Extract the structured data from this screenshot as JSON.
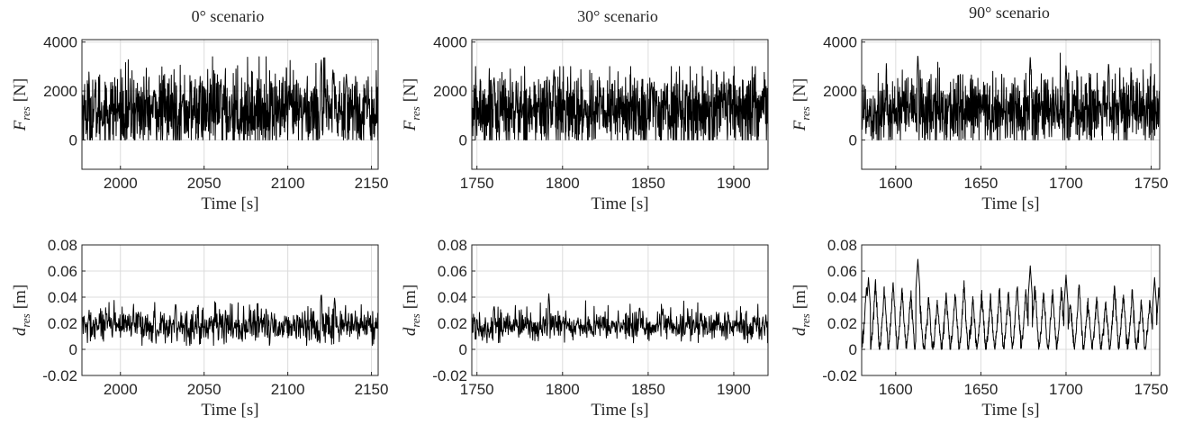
{
  "chart_data": [
    {
      "type": "line",
      "title": "0° scenario",
      "xlabel": "Time [s]",
      "ylabel_symbol": "F",
      "ylabel_sub": "res",
      "ylabel_unit": "[N]",
      "xlim": [
        1977,
        2154
      ],
      "ylim": [
        -1200,
        4100
      ],
      "xticks": [
        2000,
        2050,
        2100,
        2150
      ],
      "xticklabels": [
        "2000",
        "2050",
        "2100",
        "2150"
      ],
      "yticks": [
        0,
        2000,
        4000
      ],
      "yticklabels": [
        "0",
        "2000",
        "4000"
      ],
      "grid": true,
      "series": [
        {
          "x_start": 1977,
          "x_end": 2154,
          "pattern": "dense-noise",
          "points": 1100,
          "mean": 1200,
          "amplitude": 800,
          "min": 0,
          "max": 3400,
          "peaks": [
            [
              2060,
              2500
            ],
            [
              2120,
              3350
            ],
            [
              2127,
              2900
            ],
            [
              2135,
              2700
            ]
          ]
        }
      ]
    },
    {
      "type": "line",
      "title": "30° scenario",
      "xlabel": "Time [s]",
      "ylabel_symbol": "F",
      "ylabel_sub": "res",
      "ylabel_unit": "[N]",
      "xlim": [
        1747,
        1920
      ],
      "ylim": [
        -1200,
        4100
      ],
      "xticks": [
        1750,
        1800,
        1850,
        1900
      ],
      "xticklabels": [
        "1750",
        "1800",
        "1850",
        "1900"
      ],
      "yticks": [
        0,
        2000,
        4000
      ],
      "yticklabels": [
        "0",
        "2000",
        "4000"
      ],
      "grid": true,
      "series": [
        {
          "x_start": 1747,
          "x_end": 1920,
          "pattern": "dense-noise",
          "points": 1100,
          "mean": 1200,
          "amplitude": 800,
          "min": 0,
          "max": 3000,
          "peaks": [
            [
              1795,
              2900
            ],
            [
              1760,
              2600
            ],
            [
              1852,
              2400
            ]
          ]
        }
      ]
    },
    {
      "type": "line",
      "title": "90° scenario",
      "xlabel": "Time [s]",
      "ylabel_symbol": "F",
      "ylabel_sub": "res",
      "ylabel_unit": "[N]",
      "xlim": [
        1580,
        1755
      ],
      "ylim": [
        -1200,
        4100
      ],
      "xticks": [
        1600,
        1650,
        1700,
        1750
      ],
      "xticklabels": [
        "1600",
        "1650",
        "1700",
        "1750"
      ],
      "yticks": [
        0,
        2000,
        4000
      ],
      "yticklabels": [
        "0",
        "2000",
        "4000"
      ],
      "grid": true,
      "series": [
        {
          "x_start": 1580,
          "x_end": 1755,
          "pattern": "dense-noise",
          "points": 1100,
          "mean": 1200,
          "amplitude": 750,
          "min": 0,
          "max": 3550,
          "peaks": [
            [
              1613,
              3550
            ],
            [
              1679,
              3450
            ],
            [
              1700,
              3100
            ],
            [
              1725,
              3200
            ]
          ]
        }
      ]
    },
    {
      "type": "line",
      "title": "",
      "xlabel": "Time [s]",
      "ylabel_symbol": "d",
      "ylabel_sub": "res",
      "ylabel_unit": "[m]",
      "xlim": [
        1977,
        2154
      ],
      "ylim": [
        -0.02,
        0.08
      ],
      "xticks": [
        2000,
        2050,
        2100,
        2150
      ],
      "xticklabels": [
        "2000",
        "2050",
        "2100",
        "2150"
      ],
      "yticks": [
        -0.02,
        0,
        0.02,
        0.04,
        0.06,
        0.08
      ],
      "yticklabels": [
        "-0.02",
        "0",
        "0.02",
        "0.04",
        "0.06",
        "0.08"
      ],
      "grid": true,
      "series": [
        {
          "x_start": 1977,
          "x_end": 2154,
          "pattern": "noise",
          "points": 700,
          "mean": 0.018,
          "amplitude": 0.007,
          "min": 0.003,
          "max": 0.044,
          "peaks": [
            [
              2120,
              0.044
            ],
            [
              2128,
              0.04
            ],
            [
              2033,
              0.036
            ]
          ]
        }
      ]
    },
    {
      "type": "line",
      "title": "",
      "xlabel": "Time [s]",
      "ylabel_symbol": "d",
      "ylabel_sub": "res",
      "ylabel_unit": "[m]",
      "xlim": [
        1747,
        1920
      ],
      "ylim": [
        -0.02,
        0.08
      ],
      "xticks": [
        1750,
        1800,
        1850,
        1900
      ],
      "xticklabels": [
        "1750",
        "1800",
        "1850",
        "1900"
      ],
      "yticks": [
        -0.02,
        0,
        0.02,
        0.04,
        0.06,
        0.08
      ],
      "yticklabels": [
        "-0.02",
        "0",
        "0.02",
        "0.04",
        "0.06",
        "0.08"
      ],
      "grid": true,
      "series": [
        {
          "x_start": 1747,
          "x_end": 1920,
          "pattern": "noise",
          "points": 700,
          "mean": 0.018,
          "amplitude": 0.006,
          "min": 0.005,
          "max": 0.043,
          "peaks": [
            [
              1792,
              0.043
            ],
            [
              1760,
              0.034
            ],
            [
              1845,
              0.033
            ]
          ]
        }
      ]
    },
    {
      "type": "line",
      "title": "",
      "xlabel": "Time [s]",
      "ylabel_symbol": "d",
      "ylabel_sub": "res",
      "ylabel_unit": "[m]",
      "xlim": [
        1580,
        1755
      ],
      "ylim": [
        -0.02,
        0.08
      ],
      "xticks": [
        1600,
        1650,
        1700,
        1750
      ],
      "xticklabels": [
        "1600",
        "1650",
        "1700",
        "1750"
      ],
      "yticks": [
        -0.02,
        0,
        0.02,
        0.04,
        0.06,
        0.08
      ],
      "yticklabels": [
        "-0.02",
        "0",
        "0.02",
        "0.04",
        "0.06",
        "0.08"
      ],
      "grid": true,
      "series": [
        {
          "x_start": 1580,
          "x_end": 1755,
          "pattern": "sawtooth",
          "period": 5.2,
          "min": 0.0,
          "typical_peak": 0.05,
          "max": 0.069,
          "peaks": [
            [
              1613,
              0.069
            ],
            [
              1679,
              0.064
            ],
            [
              1700,
              0.057
            ],
            [
              1584,
              0.055
            ],
            [
              1752,
              0.055
            ]
          ]
        }
      ]
    }
  ]
}
